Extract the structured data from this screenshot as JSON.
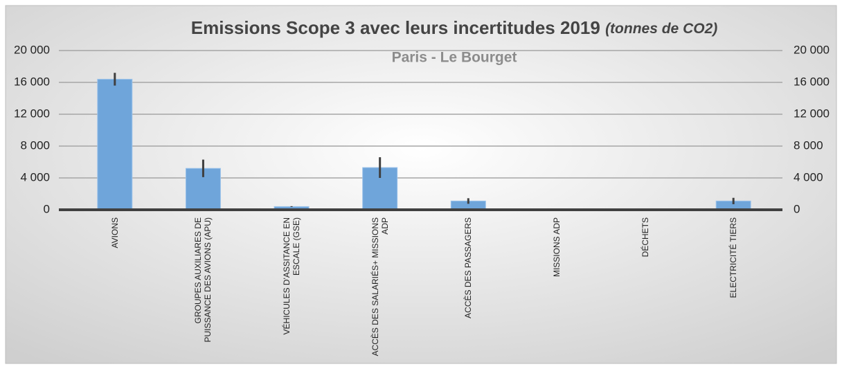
{
  "chart_data": {
    "type": "bar",
    "title": "Emissions Scope 3 avec leurs incertitudes 2019",
    "title_unit": "(tonnes de CO2)",
    "subtitle": "Paris - Le Bourget",
    "categories": [
      "AVIONS",
      "GROUPES AUXILIARES DE PUISSANCE DES AVIONS (APU)",
      "VÉHICULES D'ASSITANCE EN ESCALE (GSE)",
      "ACCÈS DES SALARIÉS+ MISSIONS ADP",
      "ACCÈS DES PASSAGERS",
      "MISSIONS ADP",
      "DÉCHETS",
      "ELECTRICITÉ TIERS"
    ],
    "series": [
      {
        "color": "#6fa5da",
        "error_color": "#3f3f3f",
        "values": [
          16400,
          5200,
          400,
          5300,
          1100,
          20,
          50,
          1100
        ],
        "errors": [
          800,
          1100,
          50,
          1300,
          350,
          10,
          100,
          400
        ]
      }
    ],
    "ylim": [
      0,
      20000
    ],
    "yticks": [
      0,
      {
        "value": 4000,
        "label": "4 000"
      },
      {
        "value": 8000,
        "label": "8 000"
      },
      {
        "value": 12000,
        "label": "12 000"
      },
      {
        "value": 16000,
        "label": "16 000"
      },
      {
        "value": 20000,
        "label": "20 000"
      }
    ],
    "y2lim": [
      0,
      20000
    ],
    "y2ticks": [
      0,
      {
        "value": 4000,
        "label": "4 000"
      },
      {
        "value": 8000,
        "label": "8 000"
      },
      {
        "value": 12000,
        "label": "12 000"
      },
      {
        "value": 16000,
        "label": "16 000"
      },
      {
        "value": 20000,
        "label": "20 000"
      }
    ],
    "grid": true
  }
}
